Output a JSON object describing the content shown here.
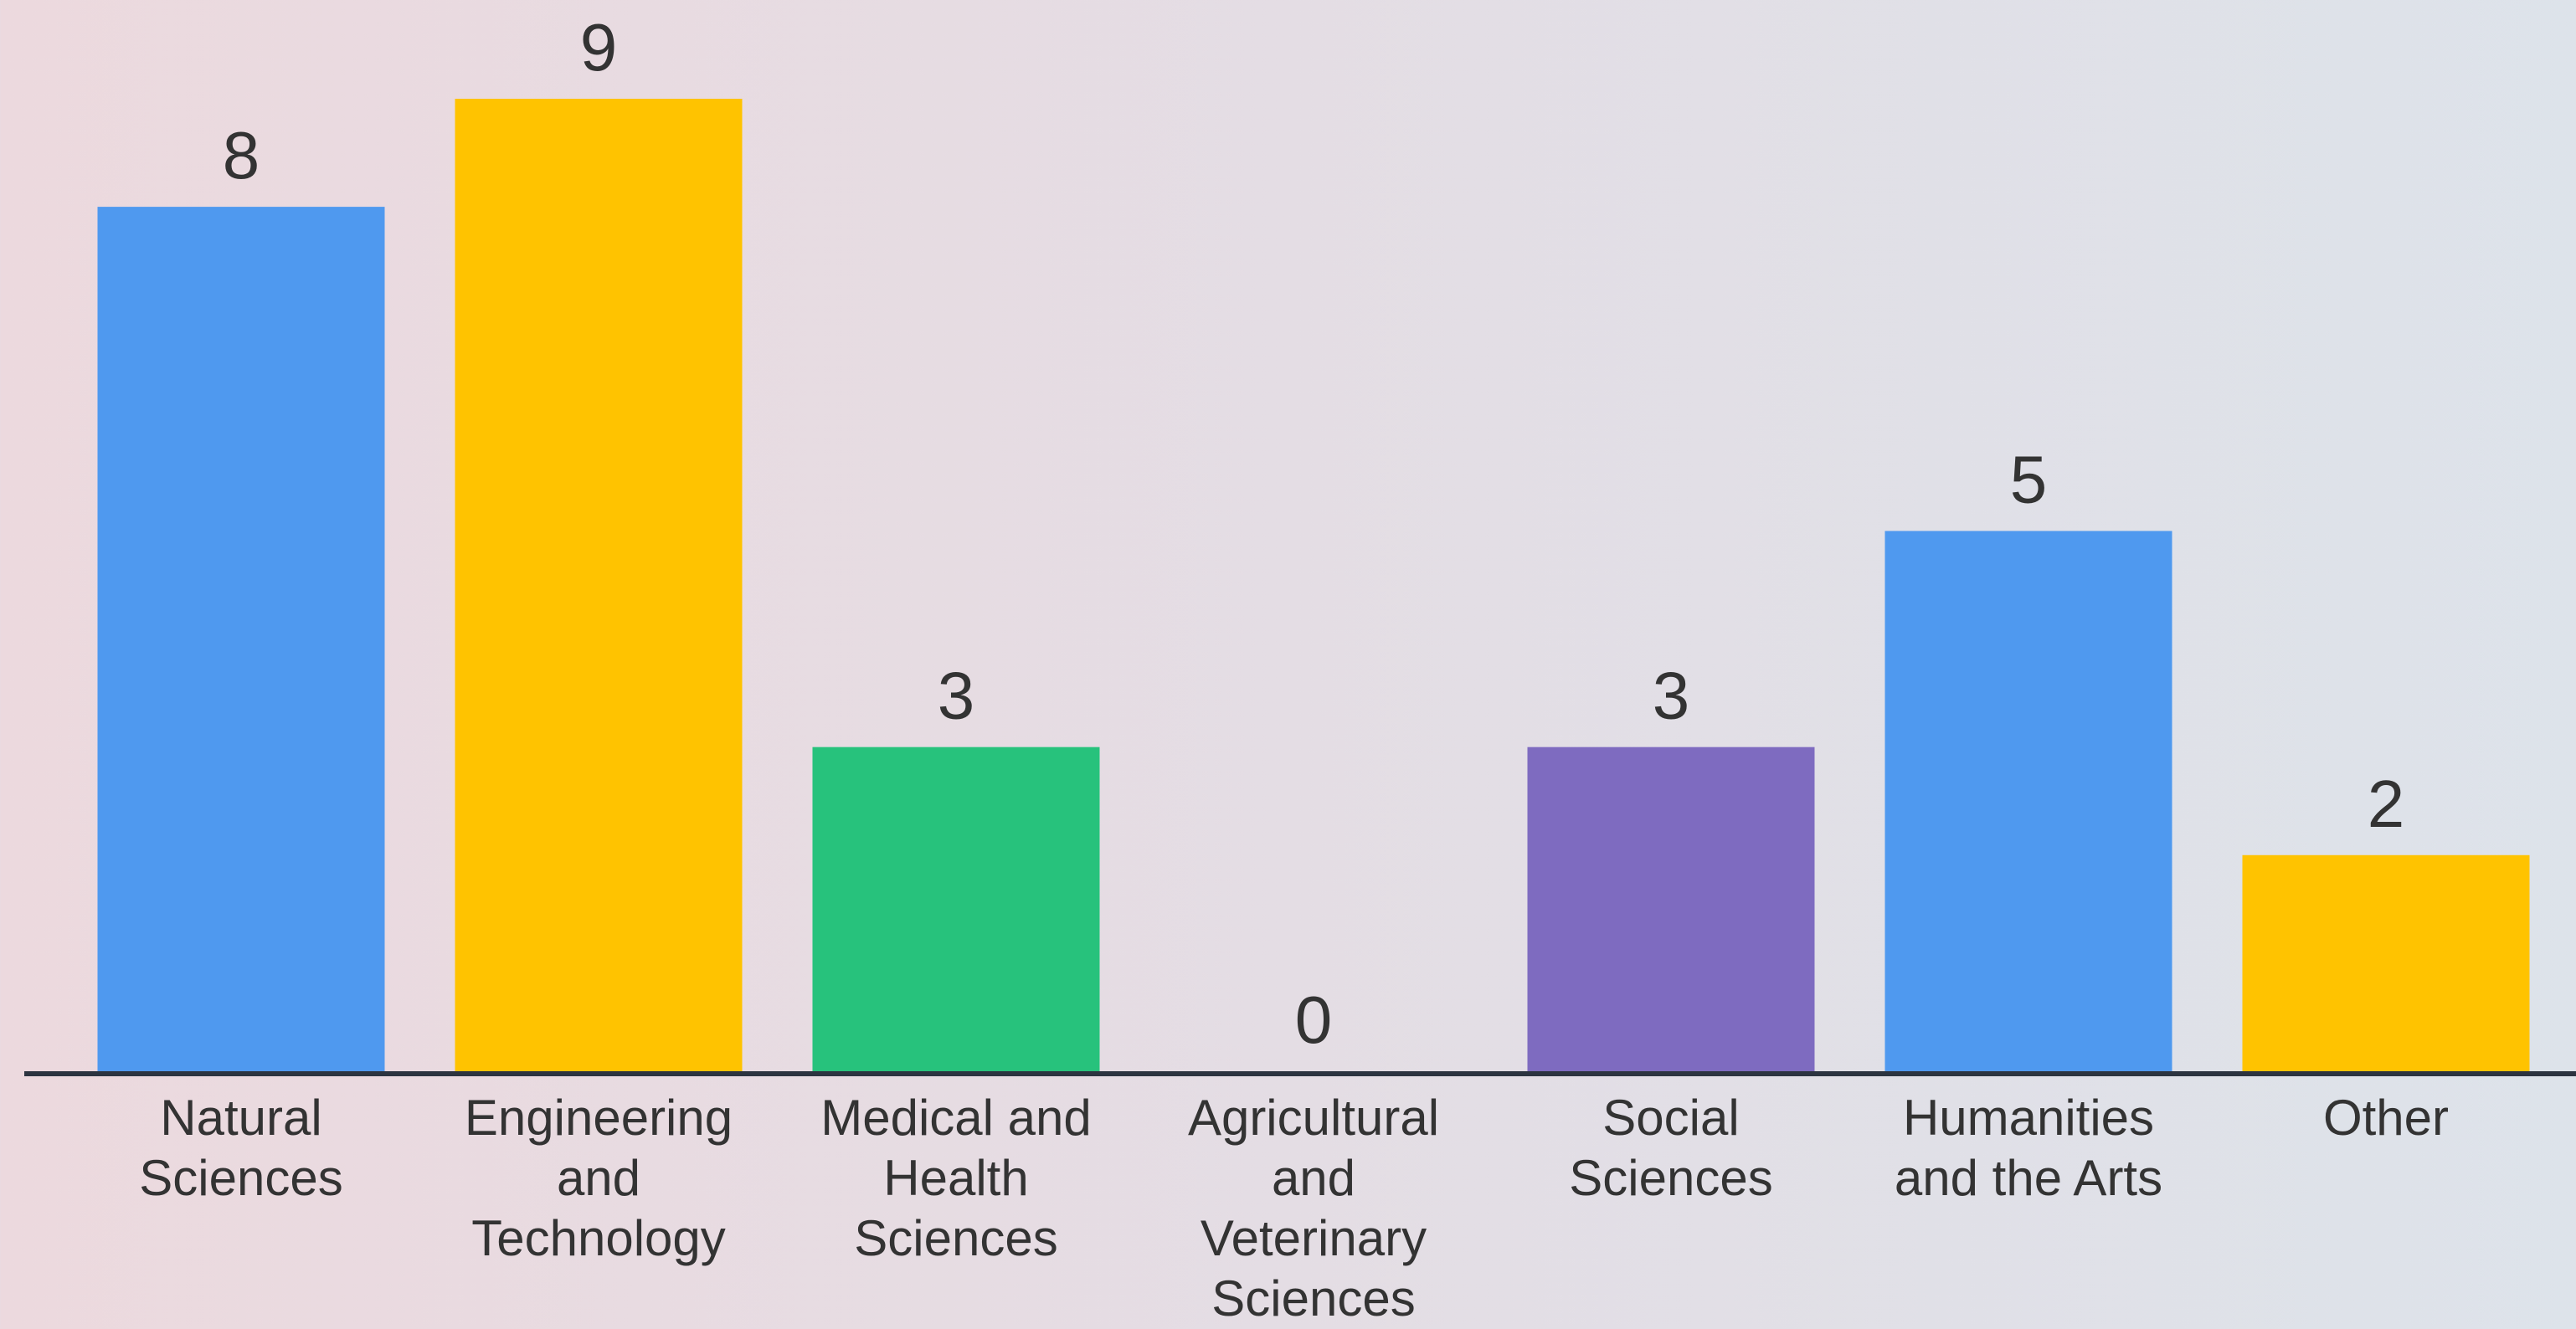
{
  "chart_data": {
    "type": "bar",
    "categories": [
      "Natural Sciences",
      "Engineering and Technology",
      "Medical and Health Sciences",
      "Agricultural and Veterinary Sciences",
      "Social Sciences",
      "Humanities and the Arts",
      "Other"
    ],
    "values": [
      8,
      9,
      3,
      0,
      3,
      5,
      2
    ],
    "colors": [
      "#4f99ef",
      "#ffc300",
      "#27c27c",
      "#4f99ef",
      "#7e6bc0",
      "#4f99ef",
      "#ffc300"
    ]
  }
}
